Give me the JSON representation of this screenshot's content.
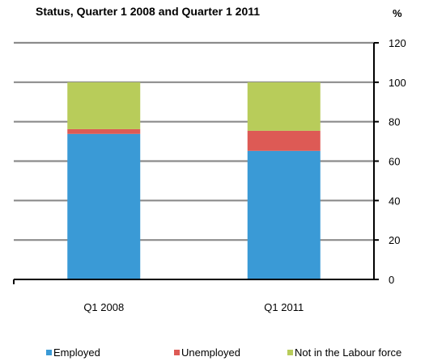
{
  "chart_data": {
    "type": "bar",
    "stacked": true,
    "title": "Status, Quarter 1 2008 and Quarter 1 2011",
    "ylabel": "%",
    "categories": [
      "Q1 2008",
      "Q1 2011"
    ],
    "series": [
      {
        "name": "Employed",
        "color": "#3a9ad6",
        "values": [
          73.8,
          65.2
        ]
      },
      {
        "name": "Unemployed",
        "color": "#dd5a55",
        "values": [
          2.4,
          10.2
        ]
      },
      {
        "name": "Not in the Labour force",
        "color": "#b8cc5a",
        "values": [
          23.8,
          24.6
        ]
      }
    ],
    "ylim": [
      0,
      120
    ],
    "yticks": [
      0,
      20,
      40,
      60,
      80,
      100,
      120
    ],
    "y_axis_side": "right",
    "grid": true,
    "legend_position": "bottom"
  }
}
